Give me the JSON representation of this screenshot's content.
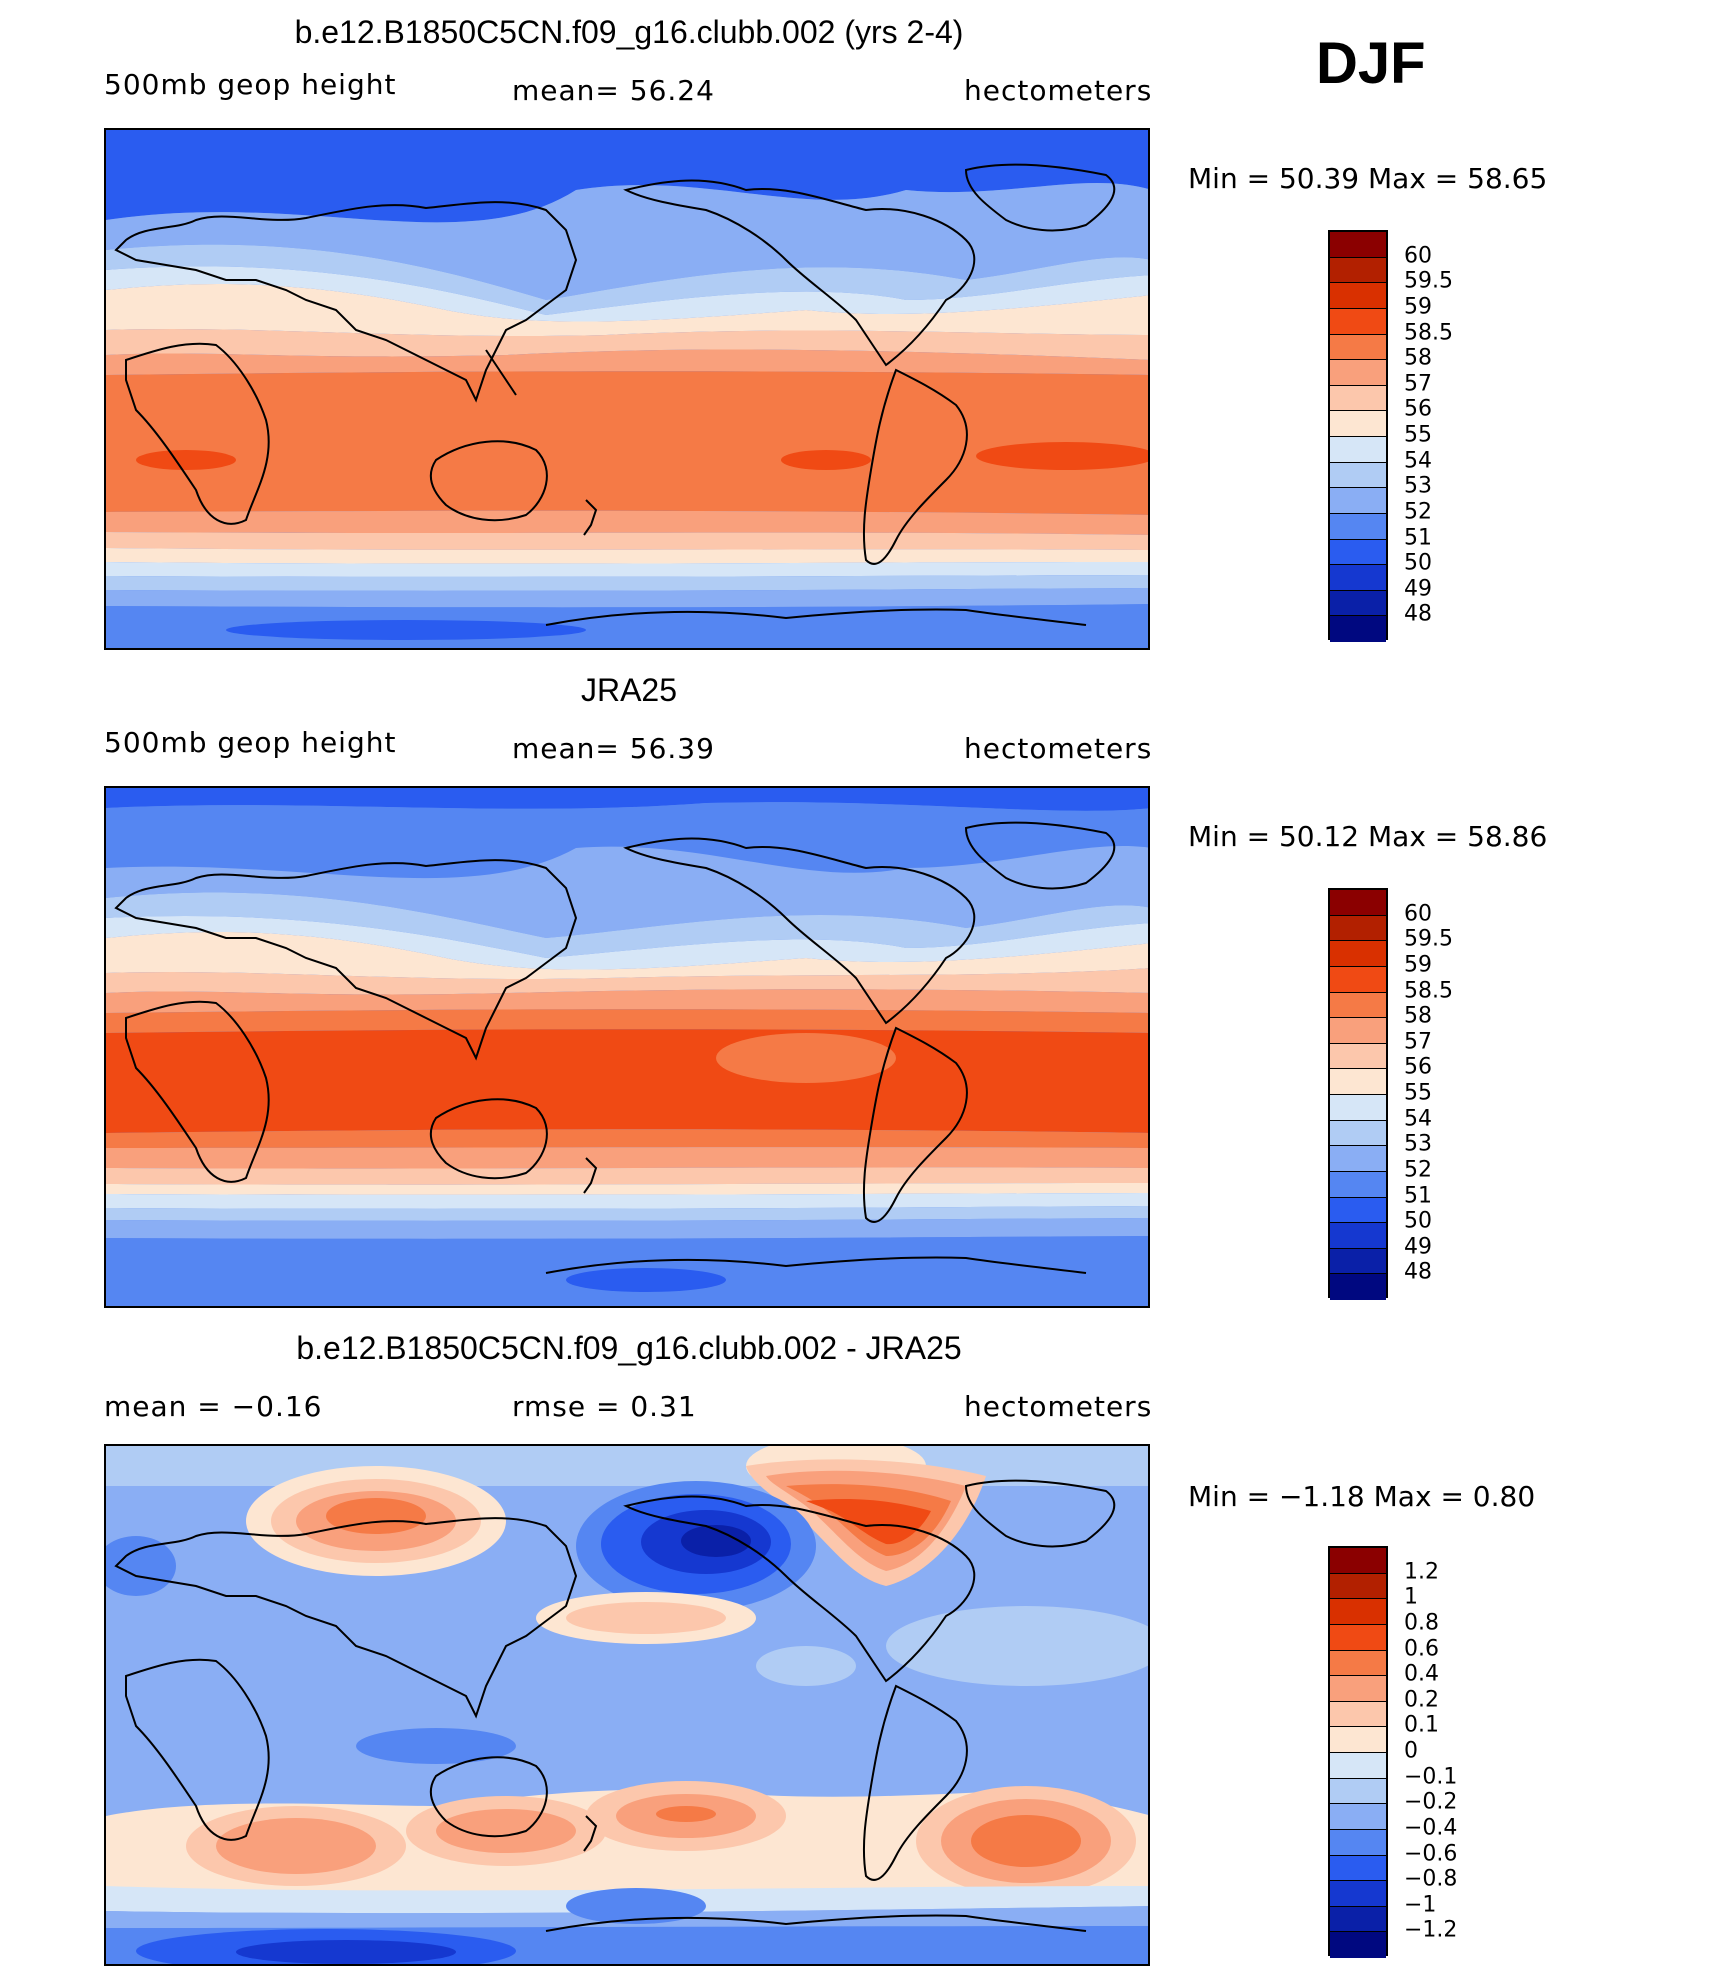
{
  "season": "DJF",
  "panels": [
    {
      "title": "b.e12.B1850C5CN.f09_g16.clubb.002 (yrs 2-4)",
      "left_label": "500mb  geop  height",
      "center_label": "mean=   56.24",
      "right_label": "hectometers",
      "minmax": "Min  =    50.39  Max  =    58.65",
      "type": "field",
      "colorbar": [
        "60",
        "59.5",
        "59",
        "58.5",
        "58",
        "57",
        "56",
        "55",
        "54",
        "53",
        "52",
        "51",
        "50",
        "49",
        "48"
      ]
    },
    {
      "title": "JRA25",
      "left_label": "500mb  geop  height",
      "center_label": "mean=   56.39",
      "right_label": "hectometers",
      "minmax": "Min  =    50.12  Max  =    58.86",
      "type": "field",
      "colorbar": [
        "60",
        "59.5",
        "59",
        "58.5",
        "58",
        "57",
        "56",
        "55",
        "54",
        "53",
        "52",
        "51",
        "50",
        "49",
        "48"
      ]
    },
    {
      "title": "b.e12.B1850C5CN.f09_g16.clubb.002 - JRA25",
      "left_label": "mean  =    −0.16",
      "center_label": "rmse  =     0.31",
      "right_label": "hectometers",
      "minmax": "Min  =    −1.18  Max  =      0.80",
      "type": "diff",
      "colorbar": [
        "1.2",
        "1",
        "0.8",
        "0.6",
        "0.4",
        "0.2",
        "0.1",
        "0",
        "−0.1",
        "−0.2",
        "−0.4",
        "−0.6",
        "−0.8",
        "−1",
        "−1.2"
      ]
    }
  ],
  "colors": {
    "field_scale": [
      "#8b0000",
      "#b22000",
      "#d93000",
      "#f04a14",
      "#f57a46",
      "#f9a07c",
      "#fcc7ac",
      "#fde6d2",
      "#d6e6f7",
      "#b0ccf4",
      "#8aaef4",
      "#5586f2",
      "#2a5cf0",
      "#1538d0",
      "#0a20a8",
      "#000880"
    ],
    "diff_scale": [
      "#8b0000",
      "#b22000",
      "#d93000",
      "#f04a14",
      "#f57a46",
      "#f9a07c",
      "#fcc7ac",
      "#fde6d2",
      "#d6e6f7",
      "#b0ccf4",
      "#8aaef4",
      "#5586f2",
      "#2a5cf0",
      "#1538d0",
      "#0a20a8",
      "#000880"
    ],
    "coast": "#000000"
  }
}
